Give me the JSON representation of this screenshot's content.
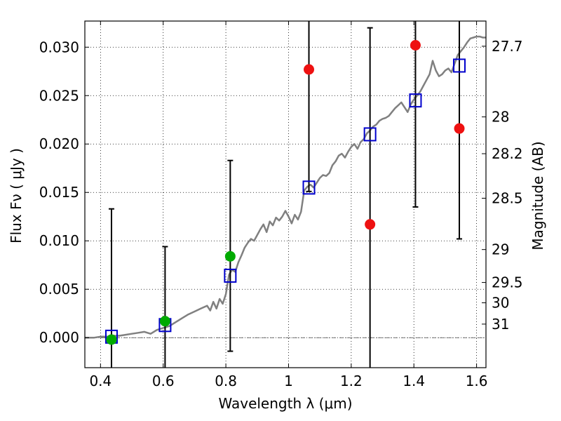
{
  "chart_data": {
    "type": "scatter",
    "title": "",
    "xlabel": "Wavelength  λ (μm)",
    "ylabel": "Flux  Fν  ( μJy )",
    "ylabel_right": "Magnitude (AB)",
    "xlim": [
      0.35,
      1.63
    ],
    "ylim": [
      -0.0031,
      0.0327
    ],
    "grid": true,
    "x_ticks": [
      0.4,
      0.6,
      0.8,
      1.0,
      1.2,
      1.4,
      1.6
    ],
    "x_tick_labels": [
      "0.4",
      "0.6",
      "0.8",
      "1",
      "1.2",
      "1.4",
      "1.6"
    ],
    "y_ticks": [
      0.0,
      0.005,
      0.01,
      0.015,
      0.02,
      0.025,
      0.03
    ],
    "y_tick_labels": [
      "0.000",
      "0.005",
      "0.010",
      "0.015",
      "0.020",
      "0.025",
      "0.030"
    ],
    "right_ticks": [
      {
        "label": "27.7",
        "flux": 0.0301
      },
      {
        "label": "28",
        "flux": 0.0228
      },
      {
        "label": "28.2",
        "flux": 0.019
      },
      {
        "label": "28.5",
        "flux": 0.0144
      },
      {
        "label": "29",
        "flux": 0.0091
      },
      {
        "label": "29.5",
        "flux": 0.0057
      },
      {
        "label": "30",
        "flux": 0.0036
      },
      {
        "label": "31",
        "flux": 0.0014
      }
    ],
    "zero_line": 0.0,
    "series": [
      {
        "name": "model SED",
        "style": "line",
        "color": "#808080",
        "x": [
          0.35,
          0.38,
          0.4,
          0.42,
          0.44,
          0.46,
          0.48,
          0.5,
          0.52,
          0.54,
          0.56,
          0.58,
          0.6,
          0.62,
          0.64,
          0.66,
          0.68,
          0.7,
          0.72,
          0.74,
          0.75,
          0.76,
          0.77,
          0.78,
          0.79,
          0.8,
          0.81,
          0.82,
          0.83,
          0.84,
          0.85,
          0.86,
          0.87,
          0.88,
          0.89,
          0.9,
          0.91,
          0.92,
          0.93,
          0.94,
          0.95,
          0.96,
          0.97,
          0.98,
          0.99,
          1.0,
          1.01,
          1.02,
          1.03,
          1.04,
          1.05,
          1.06,
          1.07,
          1.08,
          1.09,
          1.1,
          1.11,
          1.12,
          1.13,
          1.14,
          1.15,
          1.16,
          1.17,
          1.18,
          1.19,
          1.2,
          1.21,
          1.22,
          1.23,
          1.24,
          1.25,
          1.26,
          1.27,
          1.28,
          1.29,
          1.3,
          1.31,
          1.32,
          1.33,
          1.34,
          1.35,
          1.36,
          1.37,
          1.38,
          1.39,
          1.4,
          1.41,
          1.42,
          1.43,
          1.44,
          1.45,
          1.46,
          1.47,
          1.48,
          1.49,
          1.5,
          1.51,
          1.52,
          1.53,
          1.54,
          1.55,
          1.56,
          1.57,
          1.58,
          1.59,
          1.6,
          1.61,
          1.62,
          1.63
        ],
        "values": [
          0.0,
          0.0,
          0.0001,
          0.0001,
          0.0002,
          0.0002,
          0.0003,
          0.0004,
          0.0005,
          0.0006,
          0.0004,
          0.0008,
          0.001,
          0.0012,
          0.0016,
          0.002,
          0.0024,
          0.0027,
          0.003,
          0.0033,
          0.0028,
          0.0037,
          0.003,
          0.004,
          0.0035,
          0.0045,
          0.0065,
          0.007,
          0.0068,
          0.0078,
          0.0085,
          0.0093,
          0.0098,
          0.0102,
          0.01,
          0.0106,
          0.0112,
          0.0117,
          0.0109,
          0.012,
          0.0116,
          0.0124,
          0.0121,
          0.0125,
          0.0131,
          0.0125,
          0.0118,
          0.0127,
          0.0122,
          0.013,
          0.0152,
          0.0156,
          0.0158,
          0.0155,
          0.016,
          0.0165,
          0.0168,
          0.0167,
          0.017,
          0.0178,
          0.0182,
          0.0188,
          0.019,
          0.0186,
          0.0192,
          0.0197,
          0.02,
          0.0195,
          0.0202,
          0.0205,
          0.0211,
          0.0214,
          0.0218,
          0.022,
          0.0224,
          0.0226,
          0.0227,
          0.0229,
          0.0233,
          0.0237,
          0.024,
          0.0243,
          0.0238,
          0.0233,
          0.0241,
          0.0246,
          0.025,
          0.0254,
          0.026,
          0.0266,
          0.0272,
          0.0286,
          0.0276,
          0.027,
          0.0272,
          0.0276,
          0.0278,
          0.0274,
          0.0283,
          0.0292,
          0.0296,
          0.03,
          0.0305,
          0.0309,
          0.031,
          0.0311,
          0.0311,
          0.031,
          0.031
        ]
      },
      {
        "name": "model photometry",
        "style": "open-square",
        "color": "#0000cc",
        "x": [
          0.435,
          0.606,
          0.814,
          1.065,
          1.26,
          1.405,
          1.545
        ],
        "values": [
          0.0001,
          0.0013,
          0.0064,
          0.0155,
          0.021,
          0.0245,
          0.0281
        ]
      },
      {
        "name": "detections",
        "style": "filled-circle",
        "color": "#00aa00",
        "x": [
          0.435,
          0.606,
          0.814
        ],
        "values": [
          -0.0002,
          0.0017,
          0.0084
        ]
      },
      {
        "name": "upper limits",
        "style": "filled-circle",
        "color": "#ee1111",
        "x": [
          1.065,
          1.26,
          1.405,
          1.545
        ],
        "values": [
          0.0277,
          0.0117,
          0.0302,
          0.0216
        ]
      },
      {
        "name": "error bars",
        "style": "errorbar",
        "color": "#000000",
        "x": [
          0.435,
          0.606,
          0.814,
          1.065,
          1.26,
          1.405,
          1.545
        ],
        "low": [
          -0.0031,
          -0.0031,
          -0.0014,
          0.0151,
          -0.0031,
          0.0135,
          0.0102
        ],
        "high": [
          0.0133,
          0.0094,
          0.0183,
          0.0327,
          0.032,
          0.0327,
          0.0327
        ]
      }
    ]
  }
}
